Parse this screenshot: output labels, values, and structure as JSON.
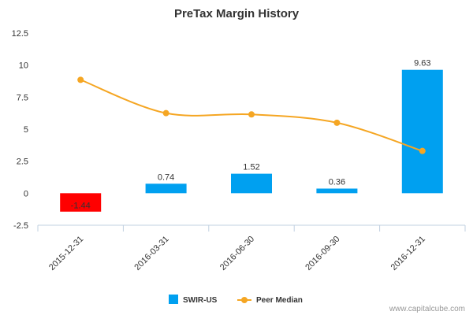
{
  "chart_data": {
    "type": "bar",
    "title": "PreTax Margin History",
    "xlabel": "",
    "ylabel": "",
    "categories": [
      "2015-12-31",
      "2016-03-31",
      "2016-06-30",
      "2016-09-30",
      "2016-12-31"
    ],
    "ylim": [
      -2.5,
      12.5
    ],
    "yticks": [
      "-2.5",
      "0",
      "2.5",
      "5",
      "7.5",
      "10",
      "12.5"
    ],
    "grid": false,
    "legend_position": "bottom",
    "series": [
      {
        "name": "SWIR-US",
        "kind": "bar",
        "values": [
          -1.44,
          0.74,
          1.52,
          0.36,
          9.63
        ],
        "labels": [
          "-1.44",
          "0.74",
          "1.52",
          "0.36",
          "9.63"
        ],
        "color": "#00a0f0",
        "negative_color": "#ff0000"
      },
      {
        "name": "Peer Median",
        "kind": "line",
        "values": [
          8.85,
          6.25,
          6.15,
          5.5,
          3.3
        ],
        "color": "#f5a623"
      }
    ]
  },
  "credit": "www.capitalcube.com"
}
